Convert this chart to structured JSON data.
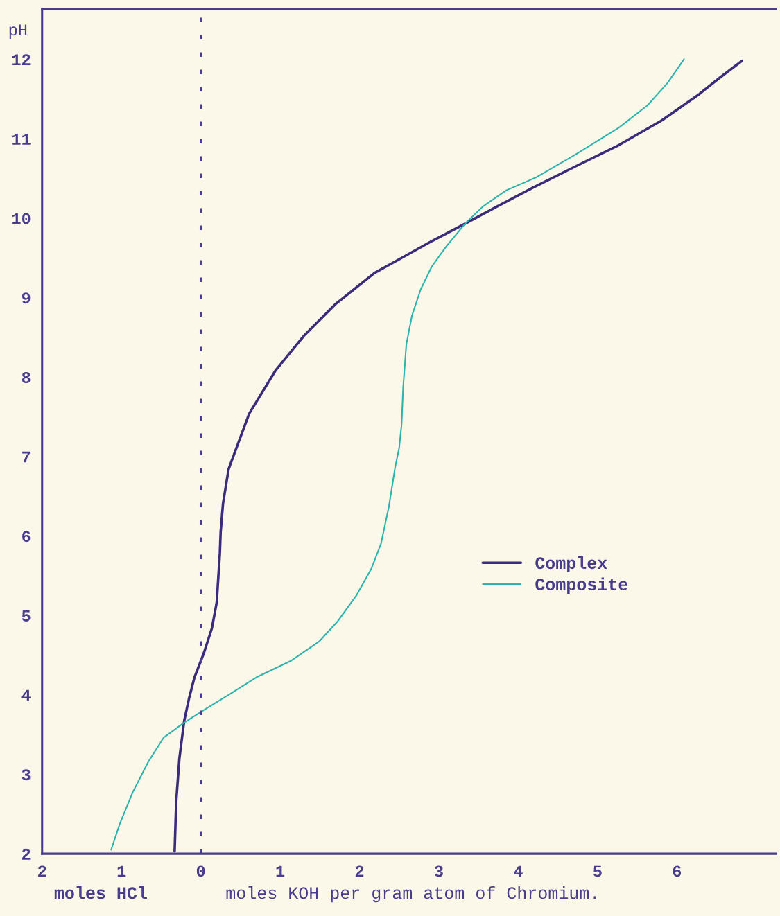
{
  "chart_data": {
    "type": "line",
    "xlabel": "moles KOH per gram atom of Chromium.",
    "ylabel": "pH",
    "annotations": [
      "moles HCl"
    ],
    "series": [
      {
        "name": "Complex",
        "color": "#3b2b7c",
        "x": [
          -0.33,
          -0.31,
          -0.27,
          -0.21,
          -0.15,
          -0.08,
          0.04,
          0.14,
          0.2,
          0.22,
          0.24,
          0.25,
          0.28,
          0.35,
          0.45,
          0.61,
          0.94,
          1.3,
          1.7,
          2.19,
          2.55,
          2.91,
          3.33,
          3.74,
          4.18,
          4.72,
          5.27,
          5.81,
          6.28,
          6.53,
          6.82
        ],
        "values": [
          2.03,
          2.66,
          3.2,
          3.67,
          3.95,
          4.22,
          4.53,
          4.84,
          5.16,
          5.47,
          5.78,
          6.05,
          6.41,
          6.84,
          7.11,
          7.54,
          8.08,
          8.52,
          8.92,
          9.31,
          9.51,
          9.71,
          9.93,
          10.15,
          10.38,
          10.65,
          10.92,
          11.23,
          11.56,
          11.76,
          11.98
        ]
      },
      {
        "name": "Composite",
        "color": "#2bb3ad",
        "x": [
          -1.13,
          -1.02,
          -0.86,
          -0.66,
          -0.47,
          -0.21,
          0.04,
          0.35,
          0.7,
          1.14,
          1.49,
          1.72,
          1.96,
          2.15,
          2.27,
          2.37,
          2.45,
          2.5,
          2.53,
          2.55,
          2.59,
          2.66,
          2.77,
          2.91,
          3.09,
          3.33,
          3.56,
          3.85,
          4.22,
          4.72,
          5.27,
          5.63,
          5.88,
          6.09
        ],
        "values": [
          2.05,
          2.38,
          2.77,
          3.16,
          3.46,
          3.65,
          3.81,
          4.0,
          4.22,
          4.43,
          4.67,
          4.92,
          5.25,
          5.59,
          5.9,
          6.37,
          6.87,
          7.11,
          7.4,
          7.87,
          8.41,
          8.77,
          9.1,
          9.39,
          9.64,
          9.93,
          10.15,
          10.35,
          10.51,
          10.8,
          11.14,
          11.42,
          11.7,
          12.0
        ]
      }
    ],
    "xlim": [
      -2,
      7.25
    ],
    "ylim": [
      2,
      12.63
    ],
    "xticks": [
      {
        "value": -2,
        "label": "2"
      },
      {
        "value": -1,
        "label": "1"
      },
      0,
      1,
      2,
      3,
      4,
      5,
      6
    ],
    "yticks": [
      2,
      3,
      4,
      5,
      6,
      7,
      8,
      9,
      10,
      11,
      12
    ],
    "ref_lines": [
      {
        "axis": "x",
        "value": 0,
        "color": "#4b3d8f",
        "line_style": "dashed"
      }
    ],
    "legend": "right"
  }
}
